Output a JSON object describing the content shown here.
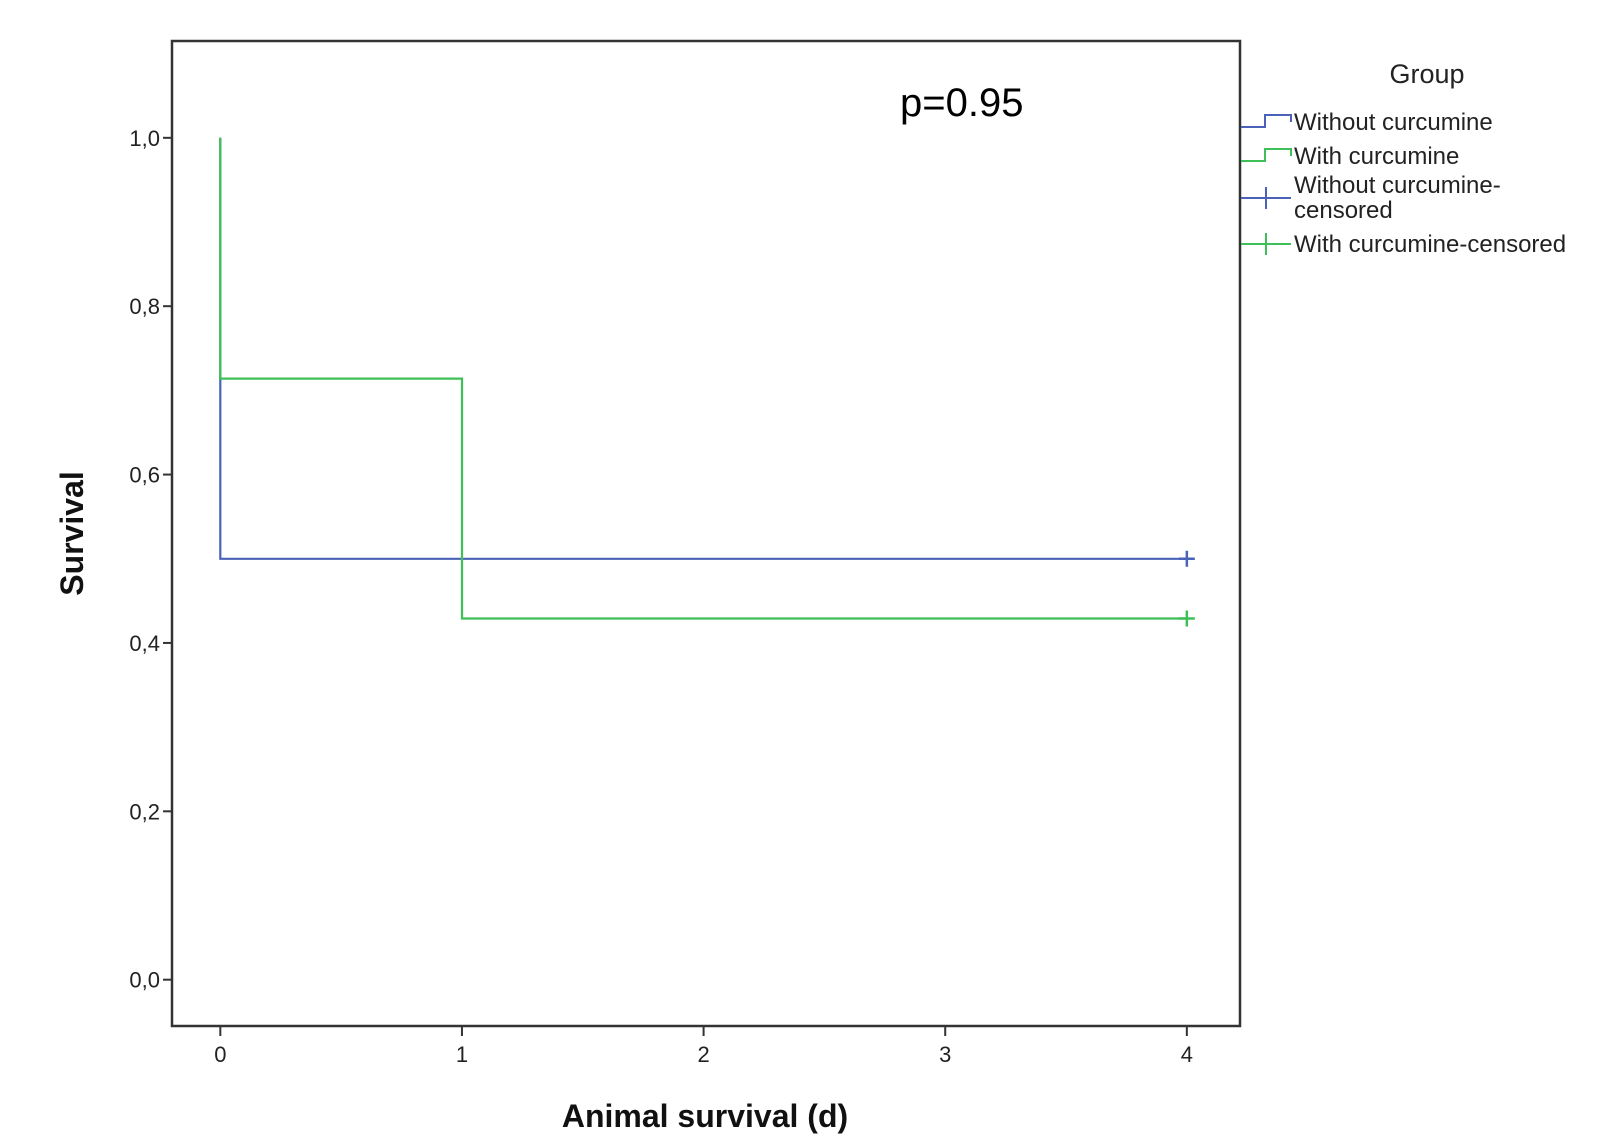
{
  "chart_data": {
    "type": "line",
    "subtype": "kaplan-meier-step",
    "title": "",
    "xlabel": "Animal survival (d)",
    "ylabel": "Survival",
    "xlim": [
      -0.2,
      4.22
    ],
    "ylim": [
      -0.055,
      1.115
    ],
    "x_ticks": [
      0,
      1,
      2,
      3,
      4
    ],
    "x_tick_labels": [
      "0",
      "1",
      "2",
      "3",
      "4"
    ],
    "y_ticks": [
      0.0,
      0.2,
      0.4,
      0.6,
      0.8,
      1.0
    ],
    "y_tick_labels": [
      "0,0",
      "0,2",
      "0,4",
      "0,6",
      "0,8",
      "1,0"
    ],
    "grid": false,
    "annotation": "p=0.95",
    "legend": {
      "title": "Group",
      "placement": "right-top",
      "entries": [
        {
          "marker": "step",
          "series": 0,
          "lines": [
            "Without curcumine"
          ]
        },
        {
          "marker": "step",
          "series": 1,
          "lines": [
            "With curcumine"
          ]
        },
        {
          "marker": "cross",
          "series": 0,
          "lines": [
            "Without curcumine-",
            "censored"
          ]
        },
        {
          "marker": "cross",
          "series": 1,
          "lines": [
            "With curcumine-censored"
          ]
        }
      ]
    },
    "series": [
      {
        "name": "Without curcumine",
        "color": "#4a63b9",
        "steps": [
          {
            "x": 0,
            "y": 1.0
          },
          {
            "x": 0,
            "y": 0.5
          },
          {
            "x": 4,
            "y": 0.5
          }
        ],
        "censored": [
          {
            "x": 4,
            "y": 0.5
          }
        ]
      },
      {
        "name": "With curcumine",
        "color": "#3fbf57",
        "steps": [
          {
            "x": 0,
            "y": 1.0
          },
          {
            "x": 0,
            "y": 0.714
          },
          {
            "x": 1,
            "y": 0.714
          },
          {
            "x": 1,
            "y": 0.429
          },
          {
            "x": 4,
            "y": 0.429
          }
        ],
        "censored": [
          {
            "x": 4,
            "y": 0.429
          }
        ]
      }
    ]
  }
}
